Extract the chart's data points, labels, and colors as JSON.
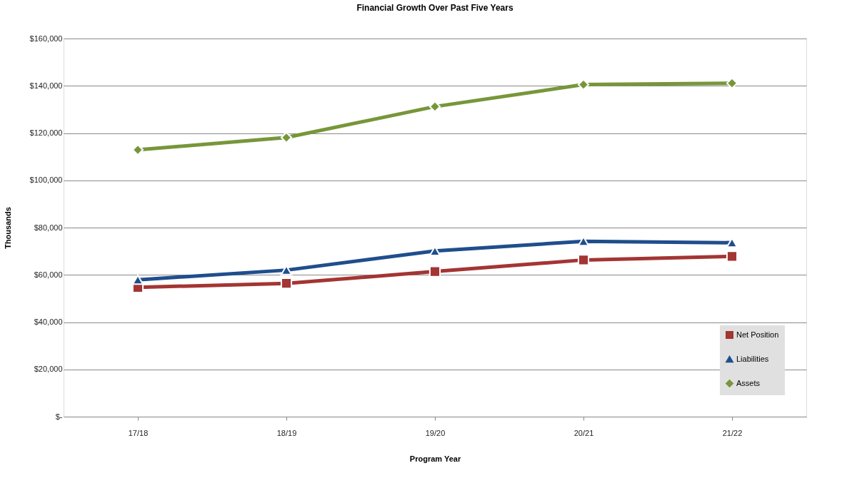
{
  "chart_data": {
    "type": "line",
    "title": "Financial Growth Over Past Five Years",
    "xlabel": "Program Year",
    "ylabel": "Thousands",
    "categories": [
      "17/18",
      "18/19",
      "19/20",
      "20/21",
      "21/22"
    ],
    "series": [
      {
        "name": "Net Position",
        "color": "#a33533",
        "marker": "square",
        "values": [
          54700,
          56400,
          61400,
          66300,
          67800
        ]
      },
      {
        "name": "Liabilities",
        "color": "#1f4e8c",
        "marker": "triangle",
        "values": [
          57900,
          62000,
          70100,
          74200,
          73600
        ]
      },
      {
        "name": "Assets",
        "color": "#77963a",
        "marker": "diamond",
        "values": [
          112900,
          118100,
          131200,
          140500,
          141100
        ]
      }
    ],
    "ylim": [
      0,
      160000
    ],
    "yticks": [
      {
        "value": 0,
        "label": "$-"
      },
      {
        "value": 20000,
        "label": "$20,000"
      },
      {
        "value": 40000,
        "label": "$40,000"
      },
      {
        "value": 60000,
        "label": "$60,000"
      },
      {
        "value": 80000,
        "label": "$80,000"
      },
      {
        "value": 100000,
        "label": "$100,000"
      },
      {
        "value": 120000,
        "label": "$120,000"
      },
      {
        "value": 140000,
        "label": "$140,000"
      },
      {
        "value": 160000,
        "label": "$160,000"
      }
    ],
    "grid": "y",
    "legend": "bottom right",
    "line_style": "solid"
  }
}
